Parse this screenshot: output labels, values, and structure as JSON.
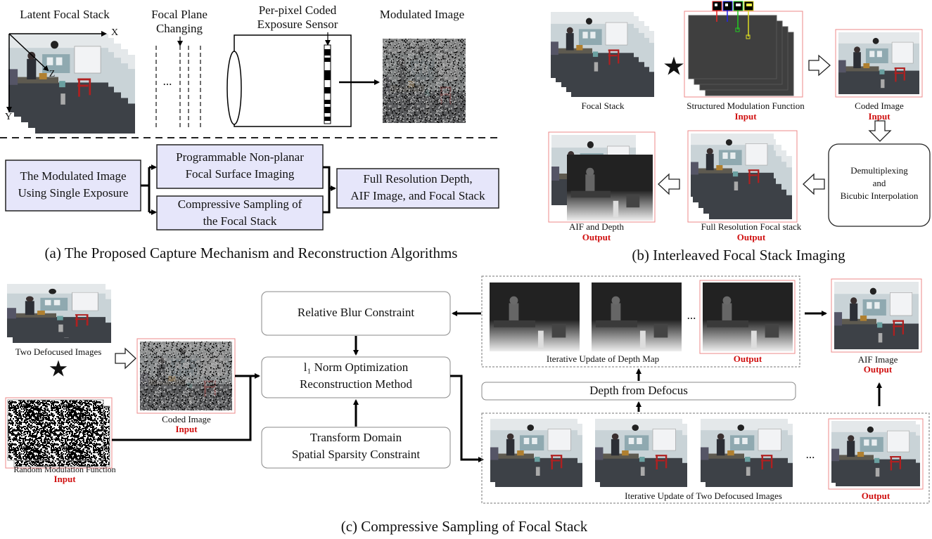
{
  "panel_a": {
    "stack_label": "Latent Focal Stack",
    "axes": {
      "x": "X",
      "z": "Z",
      "y": "Y"
    },
    "focal_plane": [
      "Focal Plane",
      "Changing"
    ],
    "ellipsis": "...",
    "sensor": [
      "Per-pixel Coded",
      "Exposure Sensor"
    ],
    "modulated": "Modulated Image",
    "boxes": [
      [
        "The Modulated Image",
        "Using Single Exposure"
      ],
      [
        "Programmable Non-planar",
        "Focal Surface Imaging"
      ],
      [
        "Compressive Sampling of",
        "the Focal Stack"
      ],
      [
        "Full Resolution Depth,",
        "AIF Image, and Focal Stack"
      ]
    ],
    "caption": "(a) The Proposed Capture Mechanism and Reconstruction Algorithms"
  },
  "panel_b": {
    "focal_stack": "Focal Stack",
    "modulation": "Structured Modulation Function",
    "modulation_tag": "Input",
    "coded": "Coded Image",
    "coded_tag": "Input",
    "demux": [
      "Demultiplexing",
      "and",
      "Bicubic Interpolation"
    ],
    "full_res": "Full Resolution Focal stack",
    "full_res_tag": "Output",
    "aif_depth": "AIF and Depth",
    "aif_depth_tag": "Output",
    "caption": "(b) Interleaved Focal Stack Imaging"
  },
  "panel_c": {
    "defocused": "Two Defocused Images",
    "random": "Random Modulation Function",
    "random_tag": "Input",
    "coded": "Coded Image",
    "coded_tag": "Input",
    "relative_blur": "Relative Blur Constraint",
    "l1_norm": [
      "l₁ Norm Optimization",
      "Reconstruction Method"
    ],
    "transform": [
      "Transform Domain",
      "Spatial Sparsity Constraint"
    ],
    "depth_update": "Iterative Update of Depth Map",
    "depth_tag": "Output",
    "depth_ellipsis": "...",
    "dfd": "Depth from Defocus",
    "aif": "AIF Image",
    "aif_tag": "Output",
    "image_update": "Iterative Update of Two Defocused Images",
    "image_ellipsis": "...",
    "image_tag": "Output",
    "caption": "(c) Compressive Sampling of Focal Stack"
  }
}
